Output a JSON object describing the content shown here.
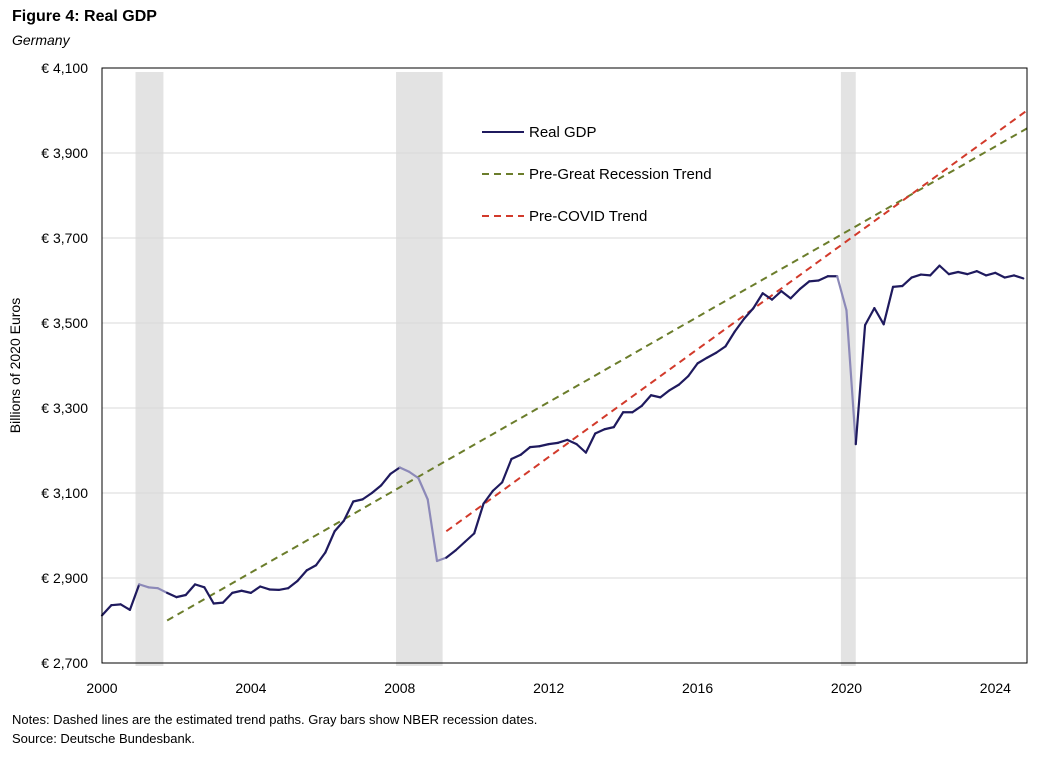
{
  "figure": {
    "title": "Figure 4: Real GDP",
    "subtitle": "Germany",
    "notes": "Notes: Dashed lines are the estimated trend paths. Gray bars show NBER recession dates.",
    "source": "Source: Deutsche Bundesbank."
  },
  "chart_data": {
    "type": "line",
    "ylabel": "Billions of 2020 Euros",
    "xlabel": "",
    "xlim": [
      2000,
      2024.85
    ],
    "ylim": [
      2700,
      4100
    ],
    "x_ticks": [
      2000,
      2004,
      2008,
      2012,
      2016,
      2020,
      2024
    ],
    "x_tick_labels": [
      "2000",
      "2004",
      "2008",
      "2012",
      "2016",
      "2020",
      "2024"
    ],
    "y_ticks": [
      2700,
      2900,
      3100,
      3300,
      3500,
      3700,
      3900,
      4100
    ],
    "y_tick_labels": [
      "€ 2,700",
      "€ 2,900",
      "€ 3,100",
      "€ 3,300",
      "€ 3,500",
      "€ 3,700",
      "€ 3,900",
      "€ 4,100"
    ],
    "grid": "horizontal",
    "legend_position": "top-center",
    "recessions": [
      [
        2000.9,
        2001.65
      ],
      [
        2007.9,
        2009.15
      ],
      [
        2019.85,
        2020.25
      ]
    ],
    "series": [
      {
        "name": "Real GDP",
        "style": "solid",
        "color": "#1f1a5e",
        "recession_color": "#8c89b8",
        "x": [
          2000.0,
          2000.25,
          2000.5,
          2000.75,
          2001.0,
          2001.25,
          2001.5,
          2001.75,
          2002.0,
          2002.25,
          2002.5,
          2002.75,
          2003.0,
          2003.25,
          2003.5,
          2003.75,
          2004.0,
          2004.25,
          2004.5,
          2004.75,
          2005.0,
          2005.25,
          2005.5,
          2005.75,
          2006.0,
          2006.25,
          2006.5,
          2006.75,
          2007.0,
          2007.25,
          2007.5,
          2007.75,
          2008.0,
          2008.25,
          2008.5,
          2008.75,
          2009.0,
          2009.25,
          2009.5,
          2009.75,
          2010.0,
          2010.25,
          2010.5,
          2010.75,
          2011.0,
          2011.25,
          2011.5,
          2011.75,
          2012.0,
          2012.25,
          2012.5,
          2012.75,
          2013.0,
          2013.25,
          2013.5,
          2013.75,
          2014.0,
          2014.25,
          2014.5,
          2014.75,
          2015.0,
          2015.25,
          2015.5,
          2015.75,
          2016.0,
          2016.25,
          2016.5,
          2016.75,
          2017.0,
          2017.25,
          2017.5,
          2017.75,
          2018.0,
          2018.25,
          2018.5,
          2018.75,
          2019.0,
          2019.25,
          2019.5,
          2019.75,
          2020.0,
          2020.25,
          2020.5,
          2020.75,
          2021.0,
          2021.25,
          2021.5,
          2021.75,
          2022.0,
          2022.25,
          2022.5,
          2022.75,
          2023.0,
          2023.25,
          2023.5,
          2023.75,
          2024.0,
          2024.25,
          2024.5,
          2024.75
        ],
        "values": [
          2812,
          2836,
          2838,
          2825,
          2885,
          2878,
          2876,
          2865,
          2855,
          2860,
          2885,
          2878,
          2840,
          2842,
          2865,
          2870,
          2865,
          2880,
          2873,
          2872,
          2876,
          2893,
          2918,
          2930,
          2960,
          3010,
          3035,
          3080,
          3085,
          3100,
          3118,
          3145,
          3160,
          3150,
          3135,
          3085,
          2940,
          2948,
          2965,
          2985,
          3005,
          3075,
          3105,
          3125,
          3180,
          3190,
          3208,
          3210,
          3215,
          3218,
          3225,
          3215,
          3195,
          3240,
          3250,
          3255,
          3290,
          3290,
          3305,
          3330,
          3325,
          3342,
          3355,
          3375,
          3405,
          3418,
          3430,
          3445,
          3480,
          3510,
          3535,
          3570,
          3555,
          3575,
          3558,
          3580,
          3598,
          3600,
          3610,
          3610,
          3530,
          3215,
          3495,
          3535,
          3497,
          3585,
          3587,
          3607,
          3614,
          3612,
          3635,
          3615,
          3620,
          3615,
          3622,
          3612,
          3618,
          3607,
          3612,
          3605
        ]
      },
      {
        "name": "Pre-Great Recession Trend",
        "style": "dashed",
        "color": "#6b7d2b",
        "x": [
          2001.75,
          2024.85
        ],
        "values": [
          2800,
          3958
        ]
      },
      {
        "name": "Pre-COVID Trend",
        "style": "dashed",
        "color": "#d23a2b",
        "x": [
          2009.25,
          2024.85
        ],
        "values": [
          3010,
          4000
        ]
      }
    ]
  }
}
